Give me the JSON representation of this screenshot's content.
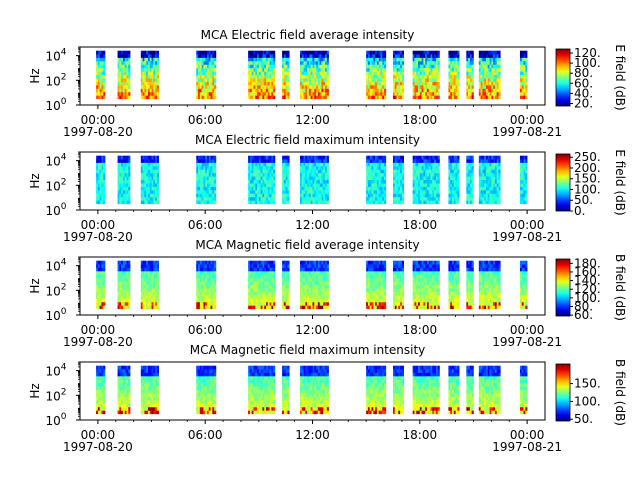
{
  "chart_data": [
    {
      "type": "heatmap",
      "title": "MCA  Electric field average intensity",
      "ylabel": "Hz",
      "yticks": [
        "10^0",
        "10^2",
        "10^4"
      ],
      "xticks": [
        "00:00\n1997-08-20",
        "06:00",
        "12:00",
        "18:00",
        "00:00\n1997-08-21"
      ],
      "colorbar_label": "E field (dB)",
      "colorbar_ticks": [
        "20.",
        "40.",
        "60.",
        "80.",
        "100.",
        "120."
      ],
      "colorbar_range": [
        15,
        128
      ]
    },
    {
      "type": "heatmap",
      "title": "MCA  Electric field maximum intensity",
      "ylabel": "Hz",
      "yticks": [
        "10^0",
        "10^2",
        "10^4"
      ],
      "xticks": [
        "00:00\n1997-08-20",
        "06:00",
        "12:00",
        "18:00",
        "00:00\n1997-08-21"
      ],
      "colorbar_label": "E field (dB)",
      "colorbar_ticks": [
        "0.",
        "50.",
        "100.",
        "150.",
        "200.",
        "250."
      ],
      "colorbar_range": [
        0,
        265
      ]
    },
    {
      "type": "heatmap",
      "title": "MCA  Magnetic field average intensity",
      "ylabel": "Hz",
      "yticks": [
        "10^0",
        "10^2",
        "10^4"
      ],
      "xticks": [
        "00:00\n1997-08-20",
        "06:00",
        "12:00",
        "18:00",
        "00:00\n1997-08-21"
      ],
      "colorbar_label": "B field (dB)",
      "colorbar_ticks": [
        "60.",
        "80.",
        "100.",
        "120.",
        "140.",
        "160.",
        "180."
      ],
      "colorbar_range": [
        58,
        190
      ]
    },
    {
      "type": "heatmap",
      "title": "MCA  Magnetic field maximum intensity",
      "ylabel": "Hz",
      "yticks": [
        "10^0",
        "10^2",
        "10^4"
      ],
      "xticks": [
        "00:00\n1997-08-20",
        "06:00",
        "12:00",
        "18:00",
        "00:00\n1997-08-21"
      ],
      "colorbar_label": "B field (dB)",
      "colorbar_ticks": [
        "50.",
        "100.",
        "150."
      ],
      "colorbar_range": [
        45,
        205
      ]
    }
  ],
  "data_segments_hours": [
    [
      -0.1,
      0.4
    ],
    [
      1.1,
      1.8
    ],
    [
      2.4,
      3.4
    ],
    [
      5.5,
      6.6
    ],
    [
      8.4,
      9.9
    ],
    [
      10.3,
      10.7
    ],
    [
      11.3,
      12.9
    ],
    [
      15.0,
      16.1
    ],
    [
      16.5,
      17.1
    ],
    [
      17.6,
      19.1
    ],
    [
      19.6,
      20.2
    ],
    [
      20.6,
      21.0
    ],
    [
      21.3,
      22.5
    ],
    [
      23.6,
      24.0
    ]
  ],
  "colors": {
    "background": "#ffffff",
    "axes": "#000000"
  }
}
